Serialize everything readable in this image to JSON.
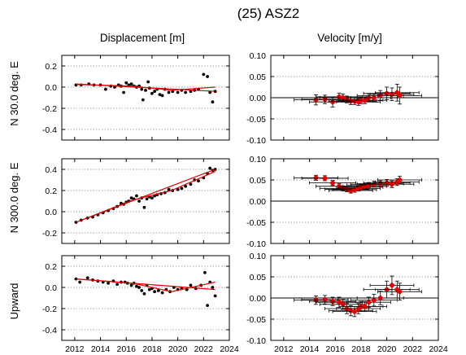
{
  "title": "(25) ASZ2",
  "column_titles": [
    "Displacement [m]",
    "Velocity [m/y]"
  ],
  "row_labels": [
    "N  30.0 deg. E",
    "N 300.0 deg. E",
    "Upward"
  ],
  "colors": {
    "points": "#000000",
    "fit": "#e00000",
    "velocity_marker": "#e00000",
    "errorbar": "#000000",
    "grid": "#888888"
  },
  "chart_data": [
    {
      "type": "scatter",
      "panel": "displacement",
      "row": "N  30.0 deg. E",
      "xlim": [
        2011,
        2024
      ],
      "ylim": [
        -0.5,
        0.3
      ],
      "xticks": [
        "2012",
        "2014",
        "2016",
        "2018",
        "2020",
        "2022",
        "2024"
      ],
      "yticks": [
        "0.2",
        "0.0",
        "-0.2",
        "-0.4"
      ],
      "ytick_values": [
        0.2,
        0.0,
        -0.2,
        -0.4
      ],
      "grid": "horizontal-dotted",
      "points": [
        [
          2012.1,
          0.02
        ],
        [
          2012.5,
          0.02
        ],
        [
          2013.1,
          0.03
        ],
        [
          2013.5,
          0.02
        ],
        [
          2014.0,
          0.02
        ],
        [
          2014.4,
          -0.02
        ],
        [
          2014.8,
          0.01
        ],
        [
          2015.1,
          0.0
        ],
        [
          2015.4,
          0.02
        ],
        [
          2015.6,
          0.01
        ],
        [
          2015.8,
          -0.05
        ],
        [
          2016.0,
          0.04
        ],
        [
          2016.2,
          0.02
        ],
        [
          2016.4,
          0.03
        ],
        [
          2016.6,
          0.01
        ],
        [
          2016.8,
          0.0
        ],
        [
          2017.0,
          0.01
        ],
        [
          2017.2,
          -0.02
        ],
        [
          2017.3,
          -0.12
        ],
        [
          2017.5,
          -0.03
        ],
        [
          2017.7,
          0.05
        ],
        [
          2017.8,
          -0.01
        ],
        [
          2018.0,
          -0.06
        ],
        [
          2018.2,
          -0.04
        ],
        [
          2018.4,
          -0.02
        ],
        [
          2018.6,
          -0.07
        ],
        [
          2018.8,
          -0.08
        ],
        [
          2019.0,
          -0.02
        ],
        [
          2019.3,
          -0.05
        ],
        [
          2019.6,
          -0.04
        ],
        [
          2020.0,
          -0.05
        ],
        [
          2020.3,
          -0.03
        ],
        [
          2020.6,
          -0.05
        ],
        [
          2021.0,
          -0.04
        ],
        [
          2021.3,
          -0.03
        ],
        [
          2021.6,
          -0.02
        ],
        [
          2022.0,
          0.12
        ],
        [
          2022.3,
          0.1
        ],
        [
          2022.5,
          -0.05
        ],
        [
          2022.7,
          -0.14
        ],
        [
          2022.9,
          -0.04
        ]
      ],
      "fit_lines": [
        [
          [
            2012.1,
            0.03
          ],
          [
            2022.9,
            -0.04
          ]
        ],
        [
          [
            2012.1,
            0.025
          ],
          [
            2016.5,
            0.01
          ],
          [
            2019.5,
            -0.03
          ],
          [
            2022.9,
            0.0
          ]
        ]
      ]
    },
    {
      "type": "errorbar",
      "panel": "velocity",
      "row": "N  30.0 deg. E",
      "xlim": [
        2011,
        2024
      ],
      "ylim": [
        -0.1,
        0.1
      ],
      "xticks": [
        "2012",
        "2014",
        "2016",
        "2018",
        "2020",
        "2022",
        "2024"
      ],
      "yticks": [
        "0.10",
        "0.05",
        "0.00",
        "-0.05",
        "-0.10"
      ],
      "ytick_values": [
        0.1,
        0.05,
        0.0,
        -0.05,
        -0.1
      ],
      "zero_line": true,
      "grid": "horizontal-dotted",
      "points": [
        {
          "x": 2014.5,
          "y": -0.005,
          "xerr": 1.7,
          "yerr": 0.012
        },
        {
          "x": 2015.2,
          "y": -0.004,
          "xerr": 1.8,
          "yerr": 0.01
        },
        {
          "x": 2015.8,
          "y": -0.01,
          "xerr": 1.8,
          "yerr": 0.012
        },
        {
          "x": 2016.3,
          "y": 0.002,
          "xerr": 1.8,
          "yerr": 0.009
        },
        {
          "x": 2016.6,
          "y": 0.0,
          "xerr": 1.8,
          "yerr": 0.009
        },
        {
          "x": 2016.9,
          "y": -0.004,
          "xerr": 1.7,
          "yerr": 0.008
        },
        {
          "x": 2017.2,
          "y": -0.008,
          "xerr": 1.7,
          "yerr": 0.008
        },
        {
          "x": 2017.5,
          "y": -0.008,
          "xerr": 1.7,
          "yerr": 0.008
        },
        {
          "x": 2017.8,
          "y": -0.01,
          "xerr": 1.7,
          "yerr": 0.008
        },
        {
          "x": 2018.0,
          "y": -0.006,
          "xerr": 1.7,
          "yerr": 0.008
        },
        {
          "x": 2018.3,
          "y": -0.006,
          "xerr": 1.7,
          "yerr": 0.008
        },
        {
          "x": 2018.6,
          "y": 0.0,
          "xerr": 1.7,
          "yerr": 0.009
        },
        {
          "x": 2019.0,
          "y": 0.0,
          "xerr": 1.8,
          "yerr": 0.01
        },
        {
          "x": 2019.5,
          "y": 0.005,
          "xerr": 1.8,
          "yerr": 0.012
        },
        {
          "x": 2020.0,
          "y": 0.01,
          "xerr": 1.8,
          "yerr": 0.015
        },
        {
          "x": 2020.4,
          "y": 0.008,
          "xerr": 1.7,
          "yerr": 0.015
        },
        {
          "x": 2020.8,
          "y": 0.012,
          "xerr": 1.7,
          "yerr": 0.02
        },
        {
          "x": 2021.0,
          "y": 0.005,
          "xerr": 1.7,
          "yerr": 0.02
        }
      ]
    },
    {
      "type": "scatter",
      "panel": "displacement",
      "row": "N 300.0 deg. E",
      "xlim": [
        2011,
        2024
      ],
      "ylim": [
        -0.3,
        0.5
      ],
      "xticks": [
        "2012",
        "2014",
        "2016",
        "2018",
        "2020",
        "2022",
        "2024"
      ],
      "yticks": [
        "0.4",
        "0.2",
        "0.0",
        "-0.2"
      ],
      "ytick_values": [
        0.4,
        0.2,
        0.0,
        -0.2
      ],
      "grid": "horizontal-dotted",
      "points": [
        [
          2012.1,
          -0.1
        ],
        [
          2012.5,
          -0.08
        ],
        [
          2013.0,
          -0.06
        ],
        [
          2013.4,
          -0.05
        ],
        [
          2013.8,
          -0.03
        ],
        [
          2014.2,
          -0.01
        ],
        [
          2014.6,
          0.01
        ],
        [
          2015.0,
          0.03
        ],
        [
          2015.3,
          0.05
        ],
        [
          2015.6,
          0.08
        ],
        [
          2015.8,
          0.07
        ],
        [
          2016.0,
          0.09
        ],
        [
          2016.2,
          0.1
        ],
        [
          2016.4,
          0.13
        ],
        [
          2016.6,
          0.12
        ],
        [
          2016.8,
          0.15
        ],
        [
          2017.0,
          0.1
        ],
        [
          2017.2,
          0.13
        ],
        [
          2017.4,
          0.04
        ],
        [
          2017.6,
          0.12
        ],
        [
          2017.8,
          0.14
        ],
        [
          2018.0,
          0.13
        ],
        [
          2018.2,
          0.15
        ],
        [
          2018.4,
          0.16
        ],
        [
          2018.7,
          0.17
        ],
        [
          2019.0,
          0.18
        ],
        [
          2019.3,
          0.21
        ],
        [
          2019.6,
          0.2
        ],
        [
          2020.0,
          0.21
        ],
        [
          2020.3,
          0.22
        ],
        [
          2020.6,
          0.24
        ],
        [
          2021.0,
          0.26
        ],
        [
          2021.3,
          0.3
        ],
        [
          2021.6,
          0.29
        ],
        [
          2022.0,
          0.32
        ],
        [
          2022.3,
          0.36
        ],
        [
          2022.5,
          0.41
        ],
        [
          2022.7,
          0.39
        ],
        [
          2022.9,
          0.4
        ]
      ],
      "fit_lines": [
        [
          [
            2012.1,
            -0.1
          ],
          [
            2022.9,
            0.4
          ]
        ],
        [
          [
            2012.1,
            -0.1
          ],
          [
            2016.5,
            0.11
          ],
          [
            2019.5,
            0.2
          ],
          [
            2022.9,
            0.38
          ]
        ]
      ]
    },
    {
      "type": "errorbar",
      "panel": "velocity",
      "row": "N 300.0 deg. E",
      "xlim": [
        2011,
        2024
      ],
      "ylim": [
        -0.1,
        0.1
      ],
      "xticks": [
        "2012",
        "2014",
        "2016",
        "2018",
        "2020",
        "2022",
        "2024"
      ],
      "yticks": [
        "0.10",
        "0.05",
        "0.00",
        "-0.05",
        "-0.10"
      ],
      "ytick_values": [
        0.1,
        0.05,
        0.0,
        -0.05,
        -0.1
      ],
      "zero_line": true,
      "grid": "horizontal-dotted",
      "points": [
        {
          "x": 2014.5,
          "y": 0.055,
          "xerr": 1.7,
          "yerr": 0.006
        },
        {
          "x": 2015.2,
          "y": 0.054,
          "xerr": 1.8,
          "yerr": 0.006
        },
        {
          "x": 2015.8,
          "y": 0.043,
          "xerr": 1.8,
          "yerr": 0.006
        },
        {
          "x": 2016.3,
          "y": 0.035,
          "xerr": 1.8,
          "yerr": 0.006
        },
        {
          "x": 2016.6,
          "y": 0.03,
          "xerr": 1.8,
          "yerr": 0.006
        },
        {
          "x": 2016.9,
          "y": 0.028,
          "xerr": 1.7,
          "yerr": 0.006
        },
        {
          "x": 2017.2,
          "y": 0.025,
          "xerr": 1.7,
          "yerr": 0.006
        },
        {
          "x": 2017.5,
          "y": 0.027,
          "xerr": 1.7,
          "yerr": 0.006
        },
        {
          "x": 2017.8,
          "y": 0.03,
          "xerr": 1.7,
          "yerr": 0.006
        },
        {
          "x": 2018.0,
          "y": 0.033,
          "xerr": 1.7,
          "yerr": 0.006
        },
        {
          "x": 2018.3,
          "y": 0.035,
          "xerr": 1.7,
          "yerr": 0.006
        },
        {
          "x": 2018.6,
          "y": 0.038,
          "xerr": 1.7,
          "yerr": 0.006
        },
        {
          "x": 2019.0,
          "y": 0.04,
          "xerr": 1.8,
          "yerr": 0.007
        },
        {
          "x": 2019.5,
          "y": 0.041,
          "xerr": 1.8,
          "yerr": 0.007
        },
        {
          "x": 2020.0,
          "y": 0.043,
          "xerr": 1.8,
          "yerr": 0.008
        },
        {
          "x": 2020.4,
          "y": 0.04,
          "xerr": 1.7,
          "yerr": 0.008
        },
        {
          "x": 2020.8,
          "y": 0.045,
          "xerr": 1.7,
          "yerr": 0.008
        },
        {
          "x": 2021.0,
          "y": 0.05,
          "xerr": 1.7,
          "yerr": 0.009
        }
      ]
    },
    {
      "type": "scatter",
      "panel": "displacement",
      "row": "Upward",
      "xlim": [
        2011,
        2024
      ],
      "ylim": [
        -0.5,
        0.3
      ],
      "xticks": [
        "2012",
        "2014",
        "2016",
        "2018",
        "2020",
        "2022",
        "2024"
      ],
      "yticks": [
        "0.2",
        "0.0",
        "-0.2",
        "-0.4"
      ],
      "ytick_values": [
        0.2,
        0.0,
        -0.2,
        -0.4
      ],
      "grid": "horizontal-dotted",
      "points": [
        [
          2012.1,
          0.08
        ],
        [
          2012.4,
          0.05
        ],
        [
          2013.0,
          0.09
        ],
        [
          2013.4,
          0.07
        ],
        [
          2013.8,
          0.06
        ],
        [
          2014.2,
          0.05
        ],
        [
          2014.6,
          0.04
        ],
        [
          2015.0,
          0.06
        ],
        [
          2015.3,
          0.03
        ],
        [
          2015.6,
          0.05
        ],
        [
          2015.9,
          0.05
        ],
        [
          2016.1,
          0.04
        ],
        [
          2016.4,
          0.02
        ],
        [
          2016.6,
          0.04
        ],
        [
          2016.8,
          0.01
        ],
        [
          2017.0,
          0.0
        ],
        [
          2017.2,
          -0.03
        ],
        [
          2017.4,
          -0.06
        ],
        [
          2017.6,
          0.02
        ],
        [
          2017.8,
          -0.02
        ],
        [
          2018.0,
          -0.01
        ],
        [
          2018.2,
          -0.04
        ],
        [
          2018.5,
          -0.03
        ],
        [
          2018.8,
          -0.05
        ],
        [
          2019.1,
          -0.02
        ],
        [
          2019.4,
          -0.04
        ],
        [
          2019.7,
          0.0
        ],
        [
          2020.0,
          -0.02
        ],
        [
          2020.3,
          -0.01
        ],
        [
          2020.7,
          -0.02
        ],
        [
          2021.0,
          0.02
        ],
        [
          2021.4,
          -0.01
        ],
        [
          2021.8,
          0.02
        ],
        [
          2022.1,
          0.14
        ],
        [
          2022.3,
          -0.17
        ],
        [
          2022.5,
          0.05
        ],
        [
          2022.7,
          0.0
        ],
        [
          2022.9,
          -0.08
        ]
      ],
      "fit_lines": [
        [
          [
            2012.1,
            0.08
          ],
          [
            2022.9,
            -0.02
          ]
        ],
        [
          [
            2012.1,
            0.08
          ],
          [
            2016.5,
            0.04
          ],
          [
            2019.5,
            -0.04
          ],
          [
            2022.9,
            0.05
          ]
        ]
      ]
    },
    {
      "type": "errorbar",
      "panel": "velocity",
      "row": "Upward",
      "xlim": [
        2011,
        2024
      ],
      "ylim": [
        -0.1,
        0.1
      ],
      "xticks": [
        "2012",
        "2014",
        "2016",
        "2018",
        "2020",
        "2022",
        "2024"
      ],
      "yticks": [
        "0.10",
        "0.05",
        "0.00",
        "-0.05",
        "-0.10"
      ],
      "ytick_values": [
        0.1,
        0.05,
        0.0,
        -0.05,
        -0.1
      ],
      "zero_line": true,
      "grid": "horizontal-dotted",
      "points": [
        {
          "x": 2014.5,
          "y": -0.005,
          "xerr": 1.7,
          "yerr": 0.01
        },
        {
          "x": 2015.2,
          "y": -0.004,
          "xerr": 1.8,
          "yerr": 0.01
        },
        {
          "x": 2015.8,
          "y": -0.008,
          "xerr": 1.8,
          "yerr": 0.01
        },
        {
          "x": 2016.3,
          "y": -0.01,
          "xerr": 1.8,
          "yerr": 0.012
        },
        {
          "x": 2016.6,
          "y": -0.015,
          "xerr": 1.8,
          "yerr": 0.012
        },
        {
          "x": 2016.9,
          "y": -0.025,
          "xerr": 1.7,
          "yerr": 0.012
        },
        {
          "x": 2017.2,
          "y": -0.03,
          "xerr": 1.7,
          "yerr": 0.012
        },
        {
          "x": 2017.5,
          "y": -0.032,
          "xerr": 1.7,
          "yerr": 0.012
        },
        {
          "x": 2017.8,
          "y": -0.025,
          "xerr": 1.7,
          "yerr": 0.012
        },
        {
          "x": 2018.0,
          "y": -0.02,
          "xerr": 1.7,
          "yerr": 0.012
        },
        {
          "x": 2018.3,
          "y": -0.02,
          "xerr": 1.7,
          "yerr": 0.012
        },
        {
          "x": 2018.6,
          "y": -0.01,
          "xerr": 1.7,
          "yerr": 0.012
        },
        {
          "x": 2019.0,
          "y": -0.005,
          "xerr": 1.8,
          "yerr": 0.014
        },
        {
          "x": 2019.5,
          "y": 0.0,
          "xerr": 1.8,
          "yerr": 0.016
        },
        {
          "x": 2020.0,
          "y": 0.02,
          "xerr": 1.8,
          "yerr": 0.02
        },
        {
          "x": 2020.4,
          "y": 0.03,
          "xerr": 1.7,
          "yerr": 0.022
        },
        {
          "x": 2020.8,
          "y": 0.02,
          "xerr": 1.7,
          "yerr": 0.02
        },
        {
          "x": 2021.0,
          "y": 0.015,
          "xerr": 1.7,
          "yerr": 0.02
        }
      ]
    }
  ]
}
